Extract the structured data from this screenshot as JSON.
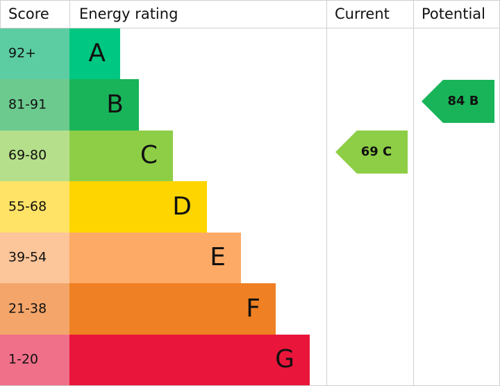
{
  "header": {
    "score": "Score",
    "rating": "Energy rating",
    "current": "Current",
    "potential": "Potential"
  },
  "rows": [
    {
      "score": "92+",
      "band": "A"
    },
    {
      "score": "81-91",
      "band": "B"
    },
    {
      "score": "69-80",
      "band": "C"
    },
    {
      "score": "55-68",
      "band": "D"
    },
    {
      "score": "39-54",
      "band": "E"
    },
    {
      "score": "21-38",
      "band": "F"
    },
    {
      "score": "1-20",
      "band": "G"
    }
  ],
  "current": "69 C",
  "potential": "84 B"
}
